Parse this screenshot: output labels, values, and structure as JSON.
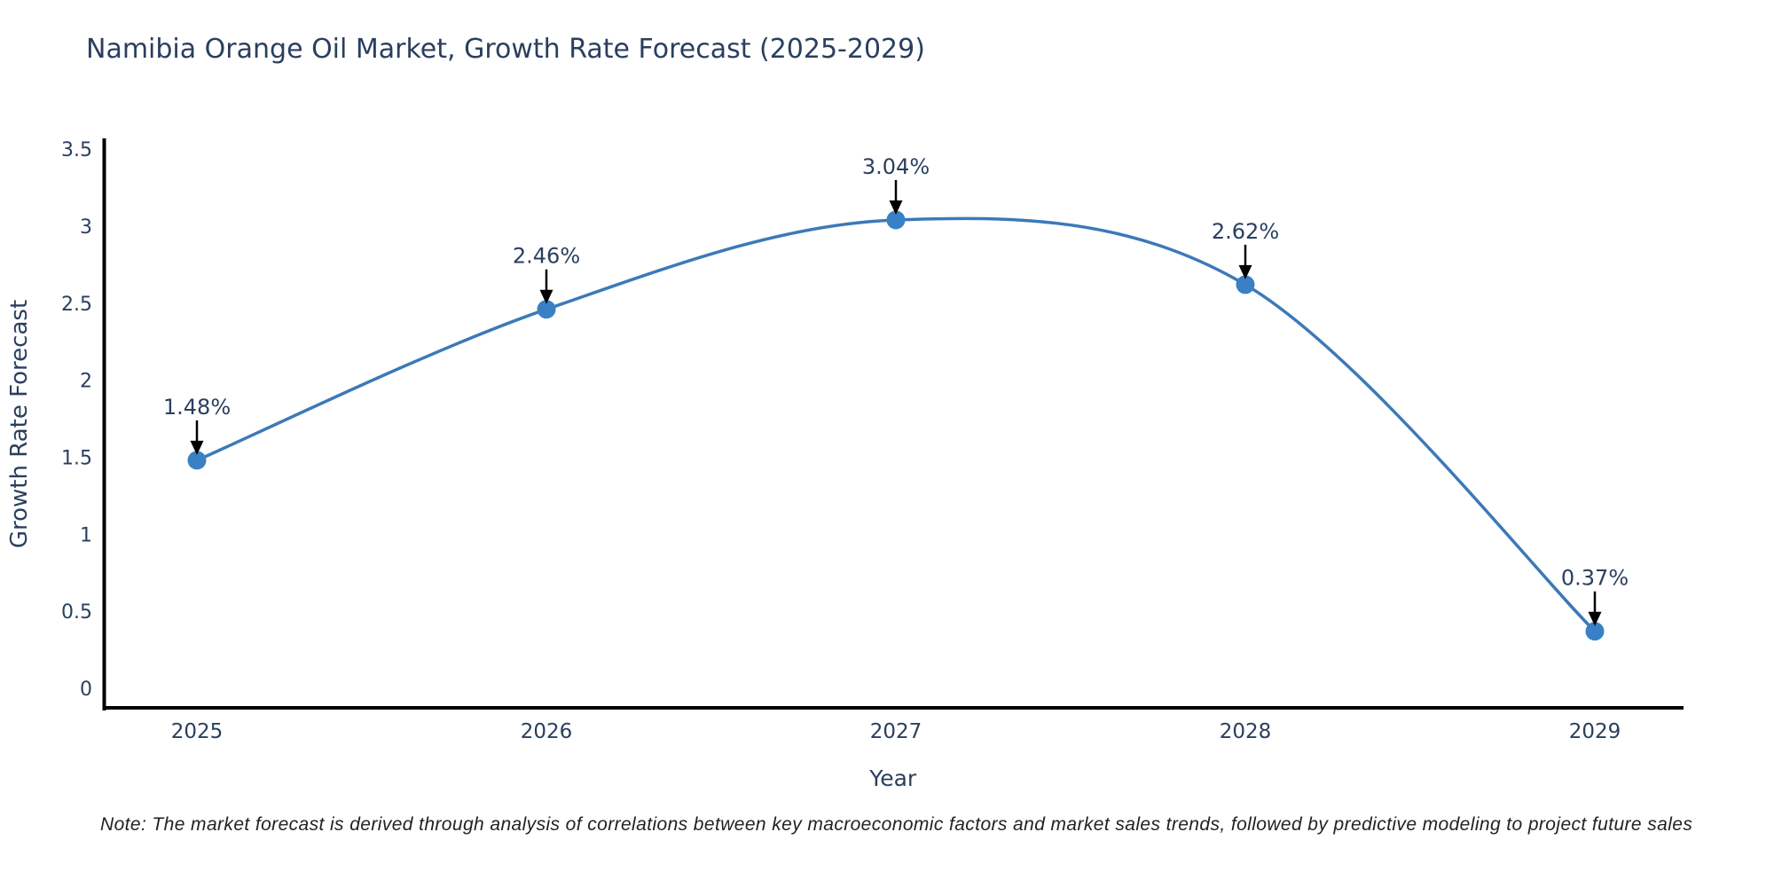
{
  "note": "Note: The market forecast is derived through analysis of correlations between key macroeconomic factors and market sales trends, followed by predictive modeling to project future sales",
  "chart_data": {
    "type": "line",
    "title": "Namibia Orange Oil Market, Growth Rate Forecast (2025-2029)",
    "x": [
      "2025",
      "2026",
      "2027",
      "2028",
      "2029"
    ],
    "series": [
      {
        "name": "Growth Rate Forecast",
        "values": [
          1.48,
          2.46,
          3.04,
          2.62,
          0.37
        ],
        "point_labels": [
          "1.48%",
          "2.46%",
          "3.04%",
          "2.62%",
          "0.37%"
        ]
      }
    ],
    "xlabel": "Year",
    "ylabel": "Growth Rate Forecast",
    "ylim": [
      0,
      3.5
    ],
    "yticks": [
      0,
      0.5,
      1,
      1.5,
      2,
      2.5,
      3,
      3.5
    ],
    "grid": false,
    "legend_position": "none",
    "line_shape": "spline",
    "colors": {
      "line": "#3c79b8",
      "marker": "#3a80c4",
      "axis": "#000000",
      "text": "#2a3f5f",
      "annotation_arrow": "#000000"
    }
  }
}
